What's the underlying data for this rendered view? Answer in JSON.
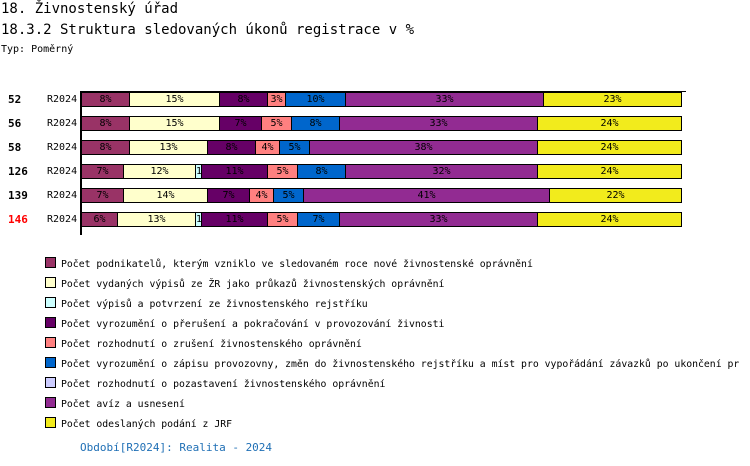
{
  "title": "18. Živnostenský úřad",
  "subtitle": "18.3.2 Struktura sledovaných úkonů registrace v %",
  "type_label": "Typ: Poměrný",
  "footer": "Období[R2024]: Realita - 2024",
  "chart_data": {
    "type": "bar",
    "orientation": "horizontal-stacked-percent",
    "xlim": [
      0,
      100
    ],
    "highlight_color": "#FF0000",
    "series": [
      {
        "name": "Počet podnikatelů, kterým vzniklo ve sledovaném roce nové živnostenské oprávnění",
        "color": "#993366"
      },
      {
        "name": "Počet vydaných výpisů ze ŽR jako průkazů živnostenských oprávnění",
        "color": "#FFFFCC"
      },
      {
        "name": "Počet výpisů a potvrzení ze živnostenského rejstříku",
        "color": "#CCFFFF"
      },
      {
        "name": "Počet vyrozumění o přerušení a pokračování v provozování živnosti",
        "color": "#660066"
      },
      {
        "name": "Počet rozhodnutí o zrušení živnostenského oprávnění",
        "color": "#FF8080"
      },
      {
        "name": "Počet vyrozumění o zápisu provozovny, změn do živnostenského rejstříku a míst pro vypořádání závazků po ukončení pr",
        "color": "#0066CC"
      },
      {
        "name": "Počet rozhodnutí o pozastavení živnostenského oprávnění",
        "color": "#CCCCFF"
      },
      {
        "name": "Počet avíz a usnesení",
        "color": "#922B92"
      },
      {
        "name": "Počet odeslaných podání z JRF",
        "color": "#F2EB1C"
      }
    ],
    "rows": [
      {
        "id": "52",
        "period": "R2024",
        "highlight": false,
        "values": [
          8,
          15,
          0,
          8,
          3,
          10,
          0,
          33,
          23
        ]
      },
      {
        "id": "56",
        "period": "R2024",
        "highlight": false,
        "values": [
          8,
          15,
          0,
          7,
          5,
          8,
          0,
          33,
          24
        ]
      },
      {
        "id": "58",
        "period": "R2024",
        "highlight": false,
        "values": [
          8,
          13,
          0,
          8,
          4,
          5,
          0,
          38,
          24
        ]
      },
      {
        "id": "126",
        "period": "R2024",
        "highlight": false,
        "values": [
          7,
          12,
          1,
          11,
          5,
          8,
          0,
          32,
          24
        ]
      },
      {
        "id": "139",
        "period": "R2024",
        "highlight": false,
        "values": [
          7,
          14,
          0,
          7,
          4,
          5,
          0,
          41,
          22
        ]
      },
      {
        "id": "146",
        "period": "R2024",
        "highlight": true,
        "values": [
          6,
          13,
          1,
          11,
          5,
          7,
          0,
          33,
          24
        ]
      }
    ]
  }
}
